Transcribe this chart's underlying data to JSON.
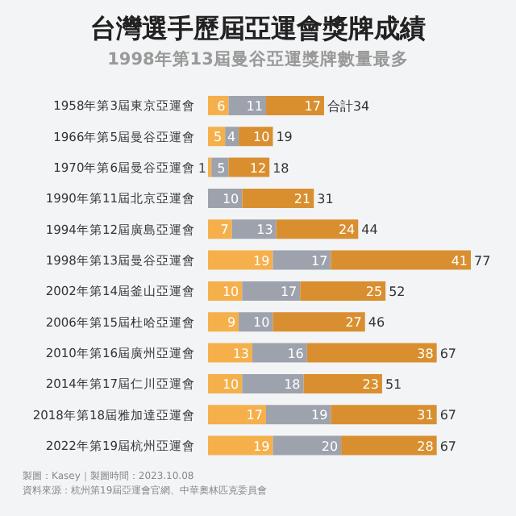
{
  "chart_data": {
    "type": "bar",
    "orientation": "horizontal",
    "stacked": true,
    "title": "台灣選手歷屆亞運會獎牌成績",
    "subtitle": "1998年第13屆曼谷亞運獎牌數量最多",
    "categories": [
      "1958年第3屆東京亞運會",
      "1966年第5屆曼谷亞運會",
      "1970年第6屆曼谷亞運會",
      "1990年第11屆北京亞運會",
      "1994年第12屆廣島亞運會",
      "1998年第13屆曼谷亞運會",
      "2002年第14屆釜山亞運會",
      "2006年第15屆杜哈亞運會",
      "2010年第16屆廣州亞運會",
      "2014年第17屆仁川亞運會",
      "2018年第18屆雅加達亞運會",
      "2022年第19屆杭州亞運會"
    ],
    "series": [
      {
        "color": "#f5b04c",
        "values": [
          6,
          5,
          1,
          0,
          7,
          19,
          10,
          9,
          13,
          10,
          17,
          19
        ],
        "value_labels": [
          "6",
          "5",
          "1",
          null,
          "7",
          "19",
          "10",
          "9",
          "13",
          "10",
          "17",
          "19"
        ]
      },
      {
        "color": "#9ea2ad",
        "values": [
          11,
          4,
          5,
          10,
          13,
          17,
          17,
          10,
          16,
          18,
          19,
          20
        ],
        "value_labels": [
          "11",
          "4",
          "5",
          "10",
          "13",
          "17",
          "17",
          "10",
          "16",
          "18",
          "19",
          "20"
        ]
      },
      {
        "color": "#d98f2f",
        "values": [
          17,
          10,
          12,
          21,
          24,
          41,
          25,
          27,
          38,
          23,
          31,
          28
        ],
        "value_labels": [
          "17",
          "10",
          "12",
          "21",
          "24",
          "41",
          "25",
          "27",
          "38",
          "23",
          "31",
          "28"
        ]
      }
    ],
    "totals": [
      "合計34",
      "19",
      "18",
      "31",
      "44",
      "77",
      "52",
      "46",
      "67",
      "51",
      "67",
      "67"
    ],
    "legend": false,
    "annotations": [
      "製圖：Kasey｜製圖時間：2023.10.08",
      "資料來源：杭州第19屆亞運會官網、中華奧林匹克委員會"
    ]
  }
}
